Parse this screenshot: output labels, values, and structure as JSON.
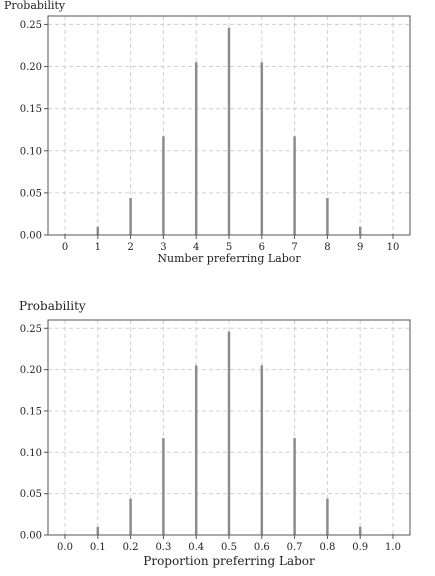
{
  "chart_data": [
    {
      "type": "bar",
      "title": "",
      "ylabel": "Probability",
      "xlabel": "Number preferring Labor",
      "categories": [
        "0",
        "1",
        "2",
        "3",
        "4",
        "5",
        "6",
        "7",
        "8",
        "9",
        "10"
      ],
      "x": [
        0,
        1,
        2,
        3,
        4,
        5,
        6,
        7,
        8,
        9,
        10
      ],
      "values": [
        0.001,
        0.0098,
        0.0439,
        0.1172,
        0.2051,
        0.2461,
        0.2051,
        0.1172,
        0.0439,
        0.0098,
        0.001
      ],
      "yticks": [
        "0.00",
        "0.05",
        "0.10",
        "0.15",
        "0.20",
        "0.25"
      ],
      "ylim": [
        0,
        0.26
      ],
      "grid": true,
      "legend": "none"
    },
    {
      "type": "bar",
      "title": "",
      "ylabel": "Probability",
      "xlabel": "Proportion preferring Labor",
      "categories": [
        "0.0",
        "0.1",
        "0.2",
        "0.3",
        "0.4",
        "0.5",
        "0.6",
        "0.7",
        "0.8",
        "0.9",
        "1.0"
      ],
      "x": [
        0.0,
        0.1,
        0.2,
        0.3,
        0.4,
        0.5,
        0.6,
        0.7,
        0.8,
        0.9,
        1.0
      ],
      "values": [
        0.001,
        0.0098,
        0.0439,
        0.1172,
        0.2051,
        0.2461,
        0.2051,
        0.1172,
        0.0439,
        0.0098,
        0.001
      ],
      "yticks": [
        "0.00",
        "0.05",
        "0.10",
        "0.15",
        "0.20",
        "0.25"
      ],
      "ylim": [
        0,
        0.26
      ],
      "grid": true,
      "legend": "none"
    }
  ]
}
